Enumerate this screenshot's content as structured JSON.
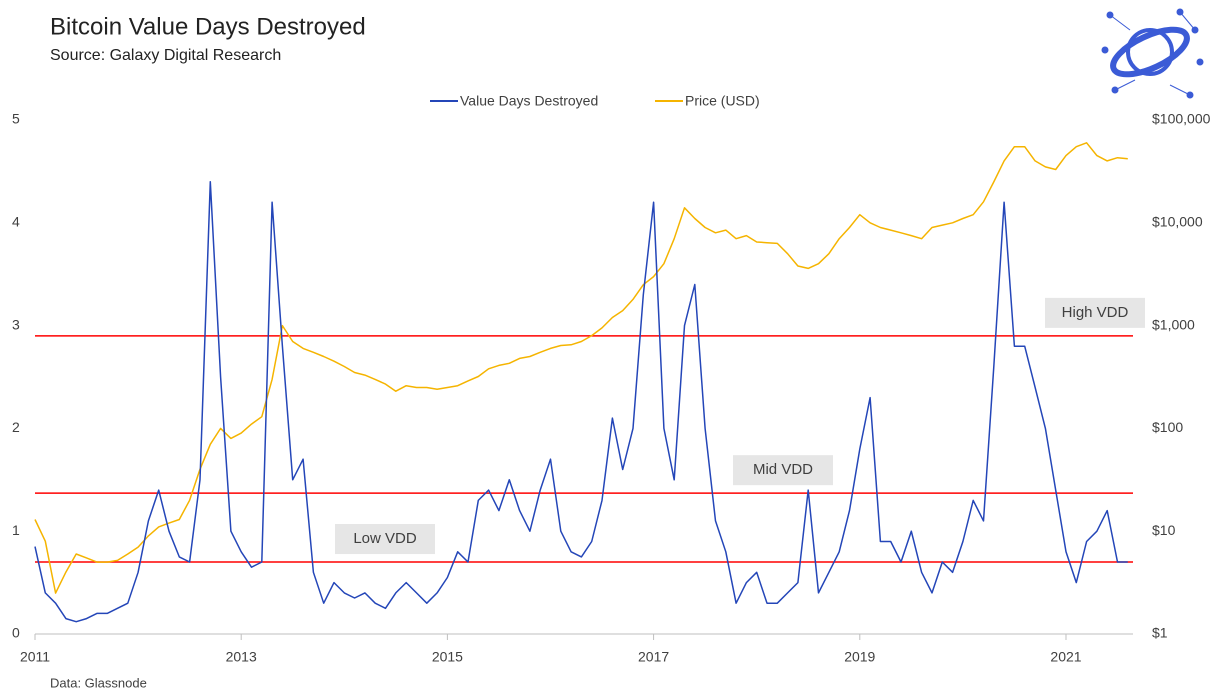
{
  "chart_data": {
    "type": "line",
    "title": "Bitcoin Value Days Destroyed",
    "subtitle": "Source: Galaxy Digital Research",
    "footnote": "Data: Glassnode",
    "legend": "top",
    "x": [
      2011,
      2011.1,
      2011.2,
      2011.3,
      2011.4,
      2011.5,
      2011.6,
      2011.7,
      2011.8,
      2011.9,
      2012,
      2012.1,
      2012.2,
      2012.3,
      2012.4,
      2012.5,
      2012.6,
      2012.7,
      2012.8,
      2012.9,
      2013,
      2013.1,
      2013.2,
      2013.3,
      2013.4,
      2013.5,
      2013.6,
      2013.7,
      2013.8,
      2013.9,
      2014,
      2014.1,
      2014.2,
      2014.3,
      2014.4,
      2014.5,
      2014.6,
      2014.7,
      2014.8,
      2014.9,
      2015,
      2015.1,
      2015.2,
      2015.3,
      2015.4,
      2015.5,
      2015.6,
      2015.7,
      2015.8,
      2015.9,
      2016,
      2016.1,
      2016.2,
      2016.3,
      2016.4,
      2016.5,
      2016.6,
      2016.7,
      2016.8,
      2016.9,
      2017,
      2017.1,
      2017.2,
      2017.3,
      2017.4,
      2017.5,
      2017.6,
      2017.7,
      2017.8,
      2017.9,
      2018,
      2018.1,
      2018.2,
      2018.3,
      2018.4,
      2018.5,
      2018.6,
      2018.7,
      2018.8,
      2018.9,
      2019,
      2019.1,
      2019.2,
      2019.3,
      2019.4,
      2019.5,
      2019.6,
      2019.7,
      2019.8,
      2019.9,
      2020,
      2020.1,
      2020.2,
      2020.3,
      2020.4,
      2020.5,
      2020.6,
      2020.7,
      2020.8,
      2020.9,
      2021,
      2021.1,
      2021.2,
      2021.3,
      2021.4,
      2021.5,
      2021.6
    ],
    "series": [
      {
        "name": "Value Days Destroyed",
        "color": "#2446b8",
        "axis": "y",
        "values": [
          0.85,
          0.4,
          0.3,
          0.15,
          0.12,
          0.15,
          0.2,
          0.2,
          0.25,
          0.3,
          0.6,
          1.1,
          1.4,
          1.0,
          0.75,
          0.7,
          1.5,
          4.4,
          2.5,
          1.0,
          0.8,
          0.65,
          0.7,
          4.2,
          2.8,
          1.5,
          1.7,
          0.6,
          0.3,
          0.5,
          0.4,
          0.35,
          0.4,
          0.3,
          0.25,
          0.4,
          0.5,
          0.4,
          0.3,
          0.4,
          0.55,
          0.8,
          0.7,
          1.3,
          1.4,
          1.2,
          1.5,
          1.2,
          1.0,
          1.4,
          1.7,
          1.0,
          0.8,
          0.75,
          0.9,
          1.3,
          2.1,
          1.6,
          2.0,
          3.3,
          4.2,
          2.0,
          1.5,
          3.0,
          3.4,
          2.0,
          1.1,
          0.8,
          0.3,
          0.5,
          0.6,
          0.3,
          0.3,
          0.4,
          0.5,
          1.4,
          0.4,
          0.6,
          0.8,
          1.2,
          1.8,
          2.3,
          0.9,
          0.9,
          0.7,
          1.0,
          0.6,
          0.4,
          0.7,
          0.6,
          0.9,
          1.3,
          1.1,
          2.6,
          4.2,
          2.8,
          2.8,
          2.4,
          2.0,
          1.4,
          0.8,
          0.5,
          0.9,
          1.0,
          1.2,
          0.7,
          0.7
        ]
      },
      {
        "name": "Price (USD)",
        "color": "#f5b400",
        "axis": "y2",
        "values": [
          13,
          8,
          2.5,
          4,
          6,
          5.5,
          5,
          5,
          5.2,
          6,
          7,
          9,
          11,
          12,
          13,
          20,
          40,
          70,
          100,
          80,
          90,
          110,
          130,
          300,
          1000,
          700,
          600,
          550,
          500,
          450,
          400,
          350,
          330,
          300,
          270,
          230,
          260,
          250,
          250,
          240,
          250,
          260,
          290,
          320,
          380,
          410,
          430,
          480,
          500,
          550,
          600,
          640,
          650,
          700,
          800,
          950,
          1200,
          1400,
          1800,
          2500,
          3000,
          4000,
          7000,
          14000,
          11000,
          9000,
          8000,
          8500,
          7000,
          7500,
          6500,
          6400,
          6300,
          5000,
          3800,
          3600,
          4000,
          5000,
          7000,
          9000,
          12000,
          10000,
          9000,
          8500,
          8000,
          7500,
          7000,
          9000,
          9500,
          10000,
          11000,
          12000,
          16000,
          25000,
          40000,
          55000,
          55000,
          40000,
          35000,
          33000,
          45000,
          55000,
          60000,
          45000,
          40000,
          43000,
          42000
        ]
      }
    ],
    "xlim": [
      2011,
      2021.65
    ],
    "xticks": [
      2011,
      2013,
      2015,
      2017,
      2019,
      2021
    ],
    "ylim": [
      0,
      5
    ],
    "yticks": [
      0,
      1,
      2,
      3,
      4,
      5
    ],
    "y2lim": [
      1,
      100000
    ],
    "y2_log": true,
    "y2ticks": [
      {
        "value": 1,
        "label": "$1"
      },
      {
        "value": 10,
        "label": "$10"
      },
      {
        "value": 100,
        "label": "$100"
      },
      {
        "value": 1000,
        "label": "$1,000"
      },
      {
        "value": 10000,
        "label": "$10,000"
      },
      {
        "value": 100000,
        "label": "$100,000"
      }
    ],
    "reference_lines": [
      {
        "label": "High VDD",
        "y": 2.9,
        "color": "#ff0000"
      },
      {
        "label": "Mid VDD",
        "y": 1.37,
        "color": "#ff0000"
      },
      {
        "label": "Low VDD",
        "y": 0.7,
        "color": "#ff0000"
      }
    ]
  }
}
